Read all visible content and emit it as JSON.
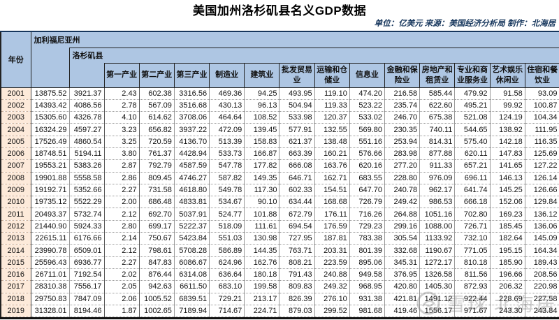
{
  "page": {
    "title": "美国加州洛杉矶县名义GDP数据",
    "subtitle": "单位：亿美元 来源：美国经济分析局 制作：北海居"
  },
  "colors": {
    "header_bg": "#aec6e3",
    "year_column_bg": "#fdeada",
    "subtitle_text": "#17375d",
    "top_border": "#16365c",
    "bottom_border": "#111111"
  },
  "watermark": {
    "logo": "snowball-logo",
    "brand": "雪球",
    "author": "北海居"
  },
  "chart_data": {
    "type": "table",
    "title": "美国加州洛杉矶县名义GDP数据",
    "unit": "亿美元",
    "source": "美国经济分析局",
    "maker": "北海居",
    "header": {
      "year": "年份",
      "state": "加利福尼亚州",
      "county": "洛杉矶县",
      "industries": [
        "第一产业",
        "第二产业",
        "第三产业",
        "制造业",
        "建筑业",
        "批发贸易业",
        "运输和仓储业",
        "信息业",
        "金融和保险业",
        "房地产和租赁业",
        "专业和商业服务业",
        "艺术娱乐休闲业",
        "住宿和餐饮业"
      ]
    },
    "rows": [
      {
        "year": "2001",
        "values": [
          "13875.52",
          "3921.37",
          "2.43",
          "602.38",
          "3316.56",
          "469.36",
          "94.25",
          "493.95",
          "119.10",
          "474.20",
          "216.58",
          "585.44",
          "479.92",
          "91.58",
          "93.09"
        ]
      },
      {
        "year": "2002",
        "values": [
          "14393.42",
          "4086.56",
          "2.78",
          "567.09",
          "3516.68",
          "430.13",
          "96.13",
          "504.94",
          "119.33",
          "523.22",
          "235.74",
          "622.60",
          "495.21",
          "99.92",
          "100.87"
        ]
      },
      {
        "year": "2003",
        "values": [
          "15305.60",
          "4326.78",
          "4.10",
          "614.62",
          "3708.06",
          "464.64",
          "108.52",
          "533.98",
          "120.37",
          "533.02",
          "246.70",
          "675.38",
          "521.08",
          "124.19",
          "104.34"
        ]
      },
      {
        "year": "2004",
        "values": [
          "16324.29",
          "4597.27",
          "3.23",
          "656.82",
          "3937.22",
          "472.09",
          "139.45",
          "577.91",
          "132.55",
          "569.80",
          "230.35",
          "740.11",
          "544.65",
          "138.92",
          "111.95"
        ]
      },
      {
        "year": "2005",
        "values": [
          "17526.49",
          "4860.54",
          "3.25",
          "720.59",
          "4136.70",
          "513.39",
          "158.83",
          "621.37",
          "138.48",
          "551.16",
          "253.94",
          "814.31",
          "575.40",
          "142.18",
          "116.35"
        ]
      },
      {
        "year": "2006",
        "values": [
          "18748.51",
          "5194.11",
          "3.80",
          "761.37",
          "4428.94",
          "533.73",
          "166.87",
          "663.39",
          "160.21",
          "576.66",
          "283.98",
          "877.88",
          "620.11",
          "147.83",
          "125.69"
        ]
      },
      {
        "year": "2007",
        "values": [
          "19553.21",
          "5383.26",
          "2.87",
          "792.79",
          "4587.59",
          "547.78",
          "177.82",
          "666.08",
          "163.76",
          "620.16",
          "277.20",
          "911.33",
          "657.21",
          "141.65",
          "127.22"
        ]
      },
      {
        "year": "2008",
        "values": [
          "19901.88",
          "5558.58",
          "2.86",
          "809.45",
          "4746.27",
          "587.82",
          "149.35",
          "646.71",
          "162.71",
          "683.55",
          "228.80",
          "976.09",
          "696.11",
          "146.13",
          "126.14"
        ]
      },
      {
        "year": "2009",
        "values": [
          "19192.71",
          "5352.66",
          "2.27",
          "731.58",
          "4618.80",
          "549.78",
          "117.30",
          "602.33",
          "154.51",
          "647.70",
          "240.78",
          "962.17",
          "641.74",
          "145.25",
          "126.66"
        ]
      },
      {
        "year": "2010",
        "values": [
          "19735.12",
          "5522.29",
          "2.00",
          "686.48",
          "4833.81",
          "534.67",
          "90.10",
          "634.44",
          "168.68",
          "726.79",
          "249.42",
          "986.53",
          "666.18",
          "152.06",
          "129.84"
        ]
      },
      {
        "year": "2011",
        "values": [
          "20493.37",
          "5732.74",
          "2.12",
          "692.70",
          "5037.91",
          "524.77",
          "101.88",
          "672.79",
          "176.11",
          "716.26",
          "264.88",
          "1051.16",
          "702.80",
          "169.23",
          "136.12"
        ]
      },
      {
        "year": "2012",
        "values": [
          "21440.90",
          "5924.33",
          "2.80",
          "699.17",
          "5222.37",
          "518.09",
          "111.61",
          "694.54",
          "176.59",
          "729.23",
          "299.16",
          "1088.00",
          "726.71",
          "185.45",
          "136.06"
        ]
      },
      {
        "year": "2013",
        "values": [
          "22615.11",
          "6176.66",
          "2.14",
          "750.67",
          "5423.84",
          "551.03",
          "130.98",
          "727.95",
          "187.81",
          "783.38",
          "305.54",
          "1133.92",
          "732.10",
          "182.64",
          "145.09"
        ]
      },
      {
        "year": "2014",
        "values": [
          "23990.78",
          "6509.01",
          "2.12",
          "798.61",
          "5708.28",
          "586.89",
          "144.35",
          "763.71",
          "203.31",
          "801.39",
          "332.68",
          "1190.67",
          "771.05",
          "195.15",
          "164.34"
        ]
      },
      {
        "year": "2015",
        "values": [
          "25596.43",
          "6936.77",
          "2.27",
          "847.83",
          "6086.67",
          "624.96",
          "162.76",
          "808.21",
          "223.59",
          "895.06",
          "345.31",
          "1272.17",
          "810.18",
          "185.90",
          "189.43"
        ]
      },
      {
        "year": "2016",
        "values": [
          "26711.01",
          "7192.54",
          "2.02",
          "876.44",
          "6314.08",
          "636.64",
          "180.18",
          "791.43",
          "240.88",
          "949.58",
          "376.95",
          "1326.58",
          "811.56",
          "196.66",
          "208.56"
        ]
      },
      {
        "year": "2017",
        "values": [
          "28310.38",
          "7556.17",
          "2.05",
          "942.63",
          "6611.50",
          "683.10",
          "199.58",
          "809.83",
          "249.32",
          "968.95",
          "420.80",
          "1405.30",
          "872.93",
          "206.32",
          "220.98"
        ]
      },
      {
        "year": "2018",
        "values": [
          "29750.83",
          "7847.09",
          "2.06",
          "1005.52",
          "6839.51",
          "729.21",
          "213.17",
          "826.39",
          "276.10",
          "931.38",
          "421.81",
          "1491.12",
          "922.44",
          "228.69",
          "227.58"
        ]
      },
      {
        "year": "2019",
        "values": [
          "31328.01",
          "8194.46",
          "1.87",
          "1002.65",
          "7189.94",
          "714.67",
          "224.71",
          "879.03",
          "299.52",
          "981.68",
          "419.46",
          "1556.17",
          "971.67",
          "243.30",
          "243.84"
        ]
      }
    ]
  }
}
